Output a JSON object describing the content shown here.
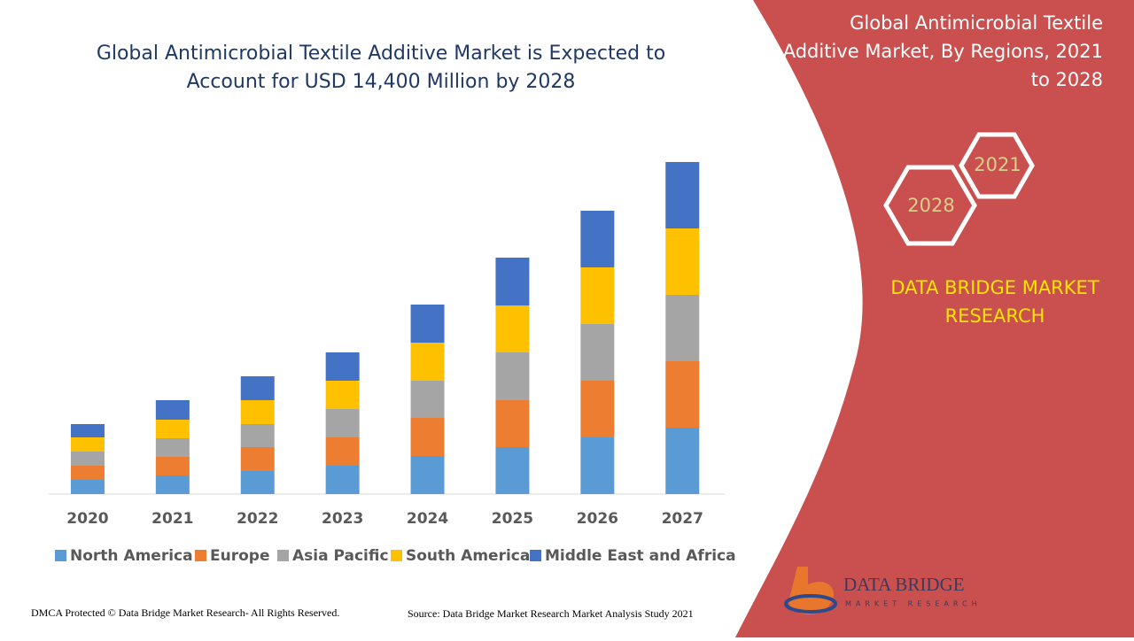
{
  "header": {
    "title_lines": [
      "Global Antimicrobial Textile Additive Market is Expected to",
      "Account for USD 14,400 Million by 2028"
    ]
  },
  "chart_data": {
    "type": "stacked_bar",
    "categories": [
      "2020",
      "2021",
      "2022",
      "2023",
      "2024",
      "2025",
      "2026",
      "2027"
    ],
    "series": [
      {
        "name": "North America",
        "color": "#5b9bd5",
        "values": [
          16,
          21,
          26,
          32,
          43,
          53,
          64,
          75
        ]
      },
      {
        "name": "Europe",
        "color": "#ed7d31",
        "values": [
          16,
          21,
          27,
          32,
          43,
          53,
          64,
          75
        ]
      },
      {
        "name": "Asia Pacific",
        "color": "#a5a5a5",
        "values": [
          16,
          21,
          26,
          32,
          42,
          54,
          64,
          75
        ]
      },
      {
        "name": "South America",
        "color": "#ffc000",
        "values": [
          16,
          21,
          27,
          32,
          43,
          53,
          64,
          75
        ]
      },
      {
        "name": "Middle East and Africa",
        "color": "#4472c4",
        "values": [
          15,
          22,
          27,
          32,
          43,
          54,
          64,
          75
        ]
      }
    ],
    "ylim": [
      0,
      400
    ]
  },
  "panel": {
    "title_lines": [
      "Global Antimicrobial Textile",
      "Additive Market, By Regions, 2021",
      "to 2028"
    ],
    "hexagons": [
      "2021",
      "2028"
    ],
    "brand_lines": [
      "DATA BRIDGE MARKET",
      "RESEARCH"
    ]
  },
  "logo": {
    "name": "DATA BRIDGE",
    "tagline": "MARKET RESEARCH"
  },
  "footer": {
    "copyright": "DMCA Protected © Data Bridge Market Research- All Rights Reserved.",
    "source": "Source: Data Bridge Market Research Market Analysis Study 2021"
  }
}
